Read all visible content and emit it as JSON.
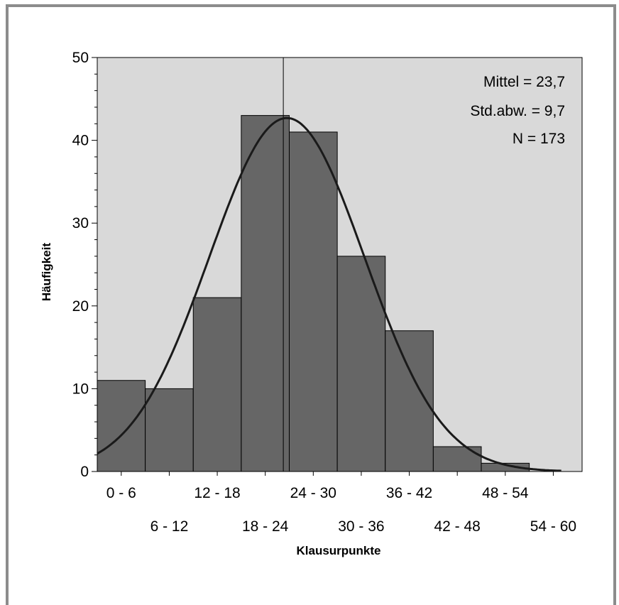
{
  "chart_data": {
    "type": "bar",
    "xlabel": "Klausurpunkte",
    "ylabel": "Häufigkeit",
    "ylim": [
      0,
      50
    ],
    "yticks": [
      "0",
      "10",
      "20",
      "30",
      "40",
      "50"
    ],
    "categories": [
      "0 - 6",
      "6 - 12",
      "12 - 18",
      "18 - 24",
      "24 - 30",
      "30 - 36",
      "36 - 42",
      "42 - 48",
      "48 - 54",
      "54 - 60"
    ],
    "values": [
      11,
      10,
      21,
      43,
      41,
      26,
      17,
      3,
      1,
      0
    ],
    "normal_curve": {
      "mean": 23.7,
      "std": 9.7,
      "n": 173,
      "bin_width": 6
    },
    "mean_line": 23.7,
    "annotations": [
      "Mittel = 23,7",
      "Std.abw. = 9,7",
      "N = 173"
    ],
    "colors": {
      "plot_background": "#d9d9d9",
      "bar_fill": "#666666",
      "bar_stroke": "#000000",
      "curve": "#1a1a1a"
    }
  }
}
